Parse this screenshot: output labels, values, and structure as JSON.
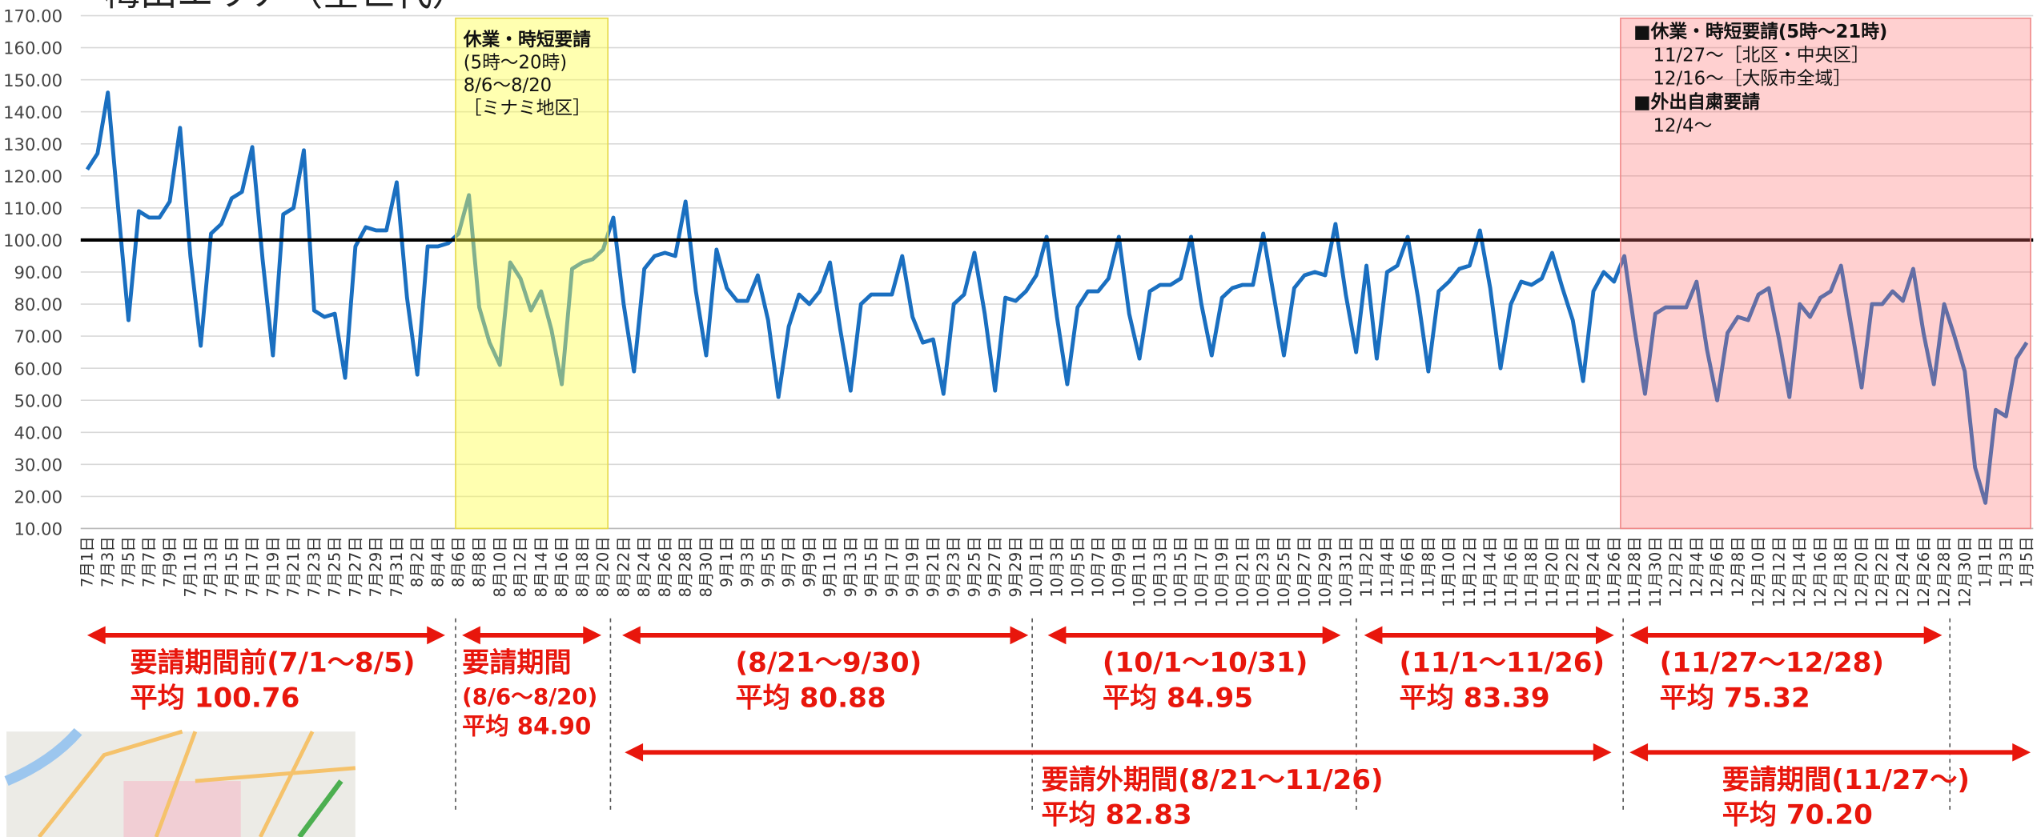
{
  "chart_data": {
    "type": "line",
    "title": "梅田エリア（全世代）",
    "categories": [
      "7月1日",
      null,
      "7月3日",
      null,
      "7月5日",
      null,
      "7月7日",
      null,
      "7月9日",
      null,
      "7月11日",
      null,
      "7月13日",
      null,
      "7月15日",
      null,
      "7月17日",
      null,
      "7月19日",
      null,
      "7月21日",
      null,
      "7月23日",
      null,
      "7月25日",
      null,
      "7月27日",
      null,
      "7月29日",
      null,
      "7月31日",
      null,
      "8月2日",
      null,
      "8月4日",
      null,
      "8月6日",
      null,
      "8月8日",
      null,
      "8月10日",
      null,
      "8月12日",
      null,
      "8月14日",
      null,
      "8月16日",
      null,
      "8月18日",
      null,
      "8月20日",
      null,
      "8月22日",
      null,
      "8月24日",
      null,
      "8月26日",
      null,
      "8月28日",
      null,
      "8月30日",
      null,
      "9月1日",
      null,
      "9月3日",
      null,
      "9月5日",
      null,
      "9月7日",
      null,
      "9月9日",
      null,
      "9月11日",
      null,
      "9月13日",
      null,
      "9月15日",
      null,
      "9月17日",
      null,
      "9月19日",
      null,
      "9月21日",
      null,
      "9月23日",
      null,
      "9月25日",
      null,
      "9月27日",
      null,
      "9月29日",
      null,
      "10月1日",
      null,
      "10月3日",
      null,
      "10月5日",
      null,
      "10月7日",
      null,
      "10月9日",
      null,
      "10月11日",
      null,
      "10月13日",
      null,
      "10月15日",
      null,
      "10月17日",
      null,
      "10月19日",
      null,
      "10月21日",
      null,
      "10月23日",
      null,
      "10月25日",
      null,
      "10月27日",
      null,
      "10月29日",
      null,
      "10月31日",
      null,
      "11月2日",
      null,
      "11月4日",
      null,
      "11月6日",
      null,
      "11月8日",
      null,
      "11月10日",
      null,
      "11月12日",
      null,
      "11月14日",
      null,
      "11月16日",
      null,
      "11月18日",
      null,
      "11月20日",
      null,
      "11月22日",
      null,
      "11月24日",
      null,
      "11月26日",
      null,
      "11月28日",
      null,
      "11月30日",
      null,
      "12月2日",
      null,
      "12月4日",
      null,
      "12月6日",
      null,
      "12月8日",
      null,
      "12月10日",
      null,
      "12月12日",
      null,
      "12月14日",
      null,
      "12月16日",
      null,
      "12月18日",
      null,
      "12月20日",
      null,
      "12月22日",
      null,
      "12月24日",
      null,
      "12月26日",
      null,
      "12月28日",
      null,
      "12月30日",
      null,
      "1月1日",
      null,
      "1月3日",
      null,
      "1月5日"
    ],
    "values": [
      122,
      127,
      146,
      110,
      75,
      109,
      107,
      107,
      112,
      135,
      95,
      67,
      102,
      105,
      113,
      115,
      129,
      94,
      64,
      108,
      110,
      128,
      78,
      76,
      77,
      57,
      98,
      104,
      103,
      103,
      118,
      82,
      58,
      98,
      98,
      99,
      102,
      114,
      79,
      68,
      61,
      93,
      88,
      78,
      84,
      72,
      55,
      91,
      93,
      94,
      97,
      107,
      80,
      59,
      91,
      95,
      96,
      95,
      112,
      84,
      64,
      97,
      85,
      81,
      81,
      89,
      75,
      51,
      73,
      83,
      80,
      84,
      93,
      72,
      53,
      80,
      83,
      83,
      83,
      95,
      76,
      68,
      69,
      52,
      80,
      83,
      96,
      77,
      53,
      82,
      81,
      84,
      89,
      101,
      76,
      55,
      79,
      84,
      84,
      88,
      101,
      77,
      63,
      84,
      86,
      86,
      88,
      101,
      80,
      64,
      82,
      85,
      86,
      86,
      102,
      83,
      64,
      85,
      89,
      90,
      89,
      105,
      83,
      65,
      92,
      63,
      90,
      92,
      101,
      82,
      59,
      84,
      87,
      91,
      92,
      103,
      85,
      60,
      80,
      87,
      86,
      88,
      96,
      85,
      75,
      56,
      84,
      90,
      87,
      95,
      72,
      52,
      77,
      79,
      79,
      79,
      87,
      66,
      50,
      71,
      76,
      75,
      83,
      85,
      69,
      51,
      80,
      76,
      82,
      84,
      92,
      73,
      54,
      80,
      80,
      84,
      81,
      91,
      71,
      55,
      80,
      70,
      59,
      29,
      18,
      47,
      45,
      63,
      68
    ],
    "color": "#1a6fc0",
    "ylim": [
      10,
      170
    ],
    "yticks": [
      {
        "value": 10,
        "label": "10.00"
      },
      {
        "value": 20,
        "label": "20.00"
      },
      {
        "value": 30,
        "label": "30.00"
      },
      {
        "value": 40,
        "label": "40.00"
      },
      {
        "value": 50,
        "label": "50.00"
      },
      {
        "value": 60,
        "label": "60.00"
      },
      {
        "value": 70,
        "label": "70.00"
      },
      {
        "value": 80,
        "label": "80.00"
      },
      {
        "value": 90,
        "label": "90.00"
      },
      {
        "value": 100,
        "label": "100.00"
      },
      {
        "value": 110,
        "label": "110.00"
      },
      {
        "value": 120,
        "label": "120.00"
      },
      {
        "value": 130,
        "label": "130.00"
      },
      {
        "value": 140,
        "label": "140.00"
      },
      {
        "value": 150,
        "label": "150.00"
      },
      {
        "value": 160,
        "label": "160.00"
      },
      {
        "value": 170,
        "label": "170.00"
      }
    ],
    "grid": true,
    "reference_line": {
      "value": 100,
      "color": "#000000"
    },
    "annotations": {
      "yellow_box": [
        "休業・時短要請",
        "(5時〜20時)",
        "8/6〜8/20",
        "［ミナミ地区］"
      ],
      "pink_box": [
        "■休業・時短要請(5時〜21時)",
        "11/27〜［北区・中央区］",
        "12/16〜［大阪市全域］",
        "■外出自粛要請",
        "12/4〜"
      ],
      "periods": [
        {
          "label": "要請期間前(7/1〜8/5)",
          "average": "平均 100.76"
        },
        {
          "label": "要請期間",
          "sublabel": "(8/6〜8/20)",
          "average": "平均 84.90"
        },
        {
          "label": "(8/21〜9/30)",
          "average": "平均 80.88"
        },
        {
          "label": "(10/1〜10/31)",
          "average": "平均 84.95"
        },
        {
          "label": "(11/1〜11/26)",
          "average": "平均 83.39"
        },
        {
          "label": "(11/27〜12/28)",
          "average": "平均 75.32"
        },
        {
          "label": "要請外期間(8/21〜11/26)",
          "average": "平均 82.83"
        },
        {
          "label": "要請期間(11/27〜)",
          "average": "平均 70.20"
        }
      ]
    }
  }
}
